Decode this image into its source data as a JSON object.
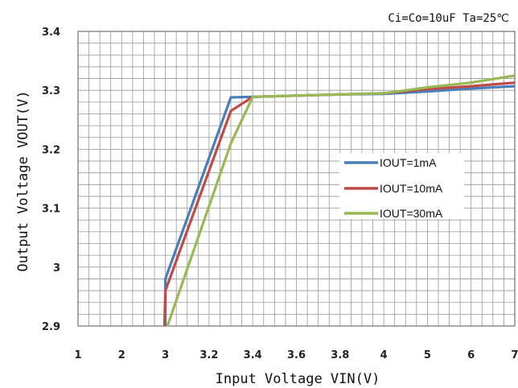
{
  "chart_data": {
    "type": "line",
    "annotation": "Ci=Co=10uF  Ta=25℃",
    "xlabel": "Input Voltage VIN(V)",
    "ylabel": "Output Voltage VOUT(V)",
    "x_tick_labels": [
      "1",
      "2",
      "3",
      "3.2",
      "3.4",
      "3.6",
      "3.8",
      "4",
      "5",
      "6",
      "7"
    ],
    "y_tick_labels": [
      "3.4",
      "3.3",
      "3.2",
      "3.1",
      "3",
      "2.9"
    ],
    "ylim": [
      2.9,
      3.4
    ],
    "grid": true,
    "legend_position": "center-right",
    "series": [
      {
        "name": "IOUT=1mA",
        "color": "#4a7ebb",
        "points": [
          [
            3.0,
            2.9
          ],
          [
            3.0,
            2.98
          ],
          [
            3.3,
            3.288
          ],
          [
            3.4,
            3.289
          ],
          [
            3.6,
            3.291
          ],
          [
            3.8,
            3.293
          ],
          [
            4.0,
            3.294
          ],
          [
            5.0,
            3.298
          ],
          [
            6.0,
            3.303
          ],
          [
            7.0,
            3.307
          ]
        ]
      },
      {
        "name": "IOUT=10mA",
        "color": "#be4b48",
        "points": [
          [
            2.98,
            2.9
          ],
          [
            3.0,
            2.96
          ],
          [
            3.3,
            3.265
          ],
          [
            3.4,
            3.289
          ],
          [
            3.6,
            3.291
          ],
          [
            3.8,
            3.293
          ],
          [
            4.0,
            3.295
          ],
          [
            5.0,
            3.302
          ],
          [
            6.0,
            3.307
          ],
          [
            7.0,
            3.313
          ]
        ]
      },
      {
        "name": "IOUT=30mA",
        "color": "#98b954",
        "points": [
          [
            3.0,
            2.89
          ],
          [
            3.3,
            3.21
          ],
          [
            3.4,
            3.289
          ],
          [
            3.6,
            3.291
          ],
          [
            3.8,
            3.293
          ],
          [
            4.0,
            3.295
          ],
          [
            5.0,
            3.305
          ],
          [
            6.0,
            3.313
          ],
          [
            7.0,
            3.325
          ]
        ]
      }
    ]
  }
}
